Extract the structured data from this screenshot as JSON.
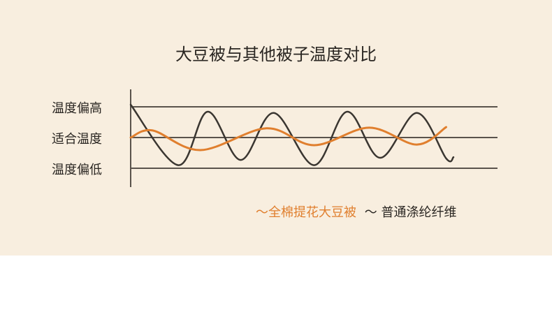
{
  "chart_data": {
    "type": "line",
    "title": "大豆被与其他被子温度对比",
    "y_tick_labels": [
      {
        "value": 1,
        "label": "温度偏高"
      },
      {
        "value": 0,
        "label": "适合温度"
      },
      {
        "value": -1,
        "label": "温度偏低"
      }
    ],
    "ylim": [
      -1.3,
      1.3
    ],
    "xlim": [
      0,
      100
    ],
    "grid": "horizontal lines at tick levels",
    "legend_placement": "bottom-right",
    "series": [
      {
        "name": "全棉提花大豆被",
        "legend_marker": "～",
        "color": "#e07f2e",
        "points": [
          [
            0,
            0
          ],
          [
            6,
            0.23
          ],
          [
            19,
            -0.41
          ],
          [
            37,
            0.3
          ],
          [
            50,
            -0.25
          ],
          [
            65,
            0.32
          ],
          [
            78,
            -0.23
          ],
          [
            86,
            0.34
          ]
        ]
      },
      {
        "name": "普通涤纶纤维",
        "legend_marker": "～",
        "color": "#3a3631",
        "points": [
          [
            0,
            1.07
          ],
          [
            13,
            -0.9
          ],
          [
            21,
            0.84
          ],
          [
            30,
            -0.73
          ],
          [
            39,
            0.8
          ],
          [
            50,
            -0.9
          ],
          [
            59,
            0.84
          ],
          [
            68,
            -0.66
          ],
          [
            78,
            0.8
          ],
          [
            86,
            -0.68
          ],
          [
            88,
            -0.64
          ]
        ]
      }
    ]
  },
  "colors": {
    "background": "#f8eedf",
    "axis": "#5a534c"
  }
}
